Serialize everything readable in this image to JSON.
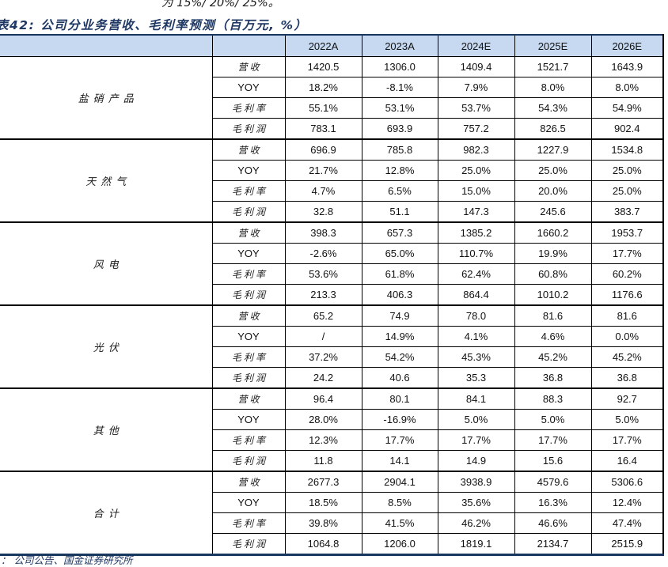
{
  "page": {
    "clipped_text_above": "为 15%/ 20%/ 25%。",
    "title": "表42: 公司分业务营收、毛利率预测（百万元, %）",
    "source_note": "： 公司公告、国金证券研究所"
  },
  "colors": {
    "header_bg": "#c6d9f1",
    "rule_navy": "#17375e",
    "title_navy": "#1f3864",
    "grid": "#000000"
  },
  "table": {
    "year_headers": [
      "2022A",
      "2023A",
      "2024E",
      "2025E",
      "2026E"
    ],
    "metric_labels": [
      "营收",
      "YOY",
      "毛利率",
      "毛利润"
    ],
    "segments": [
      {
        "name": "盐硝产品",
        "rows": [
          [
            "1420.5",
            "1306.0",
            "1409.4",
            "1521.7",
            "1643.9"
          ],
          [
            "18.2%",
            "-8.1%",
            "7.9%",
            "8.0%",
            "8.0%"
          ],
          [
            "55.1%",
            "53.1%",
            "53.7%",
            "54.3%",
            "54.9%"
          ],
          [
            "783.1",
            "693.9",
            "757.2",
            "826.5",
            "902.4"
          ]
        ]
      },
      {
        "name": "天然气",
        "rows": [
          [
            "696.9",
            "785.8",
            "982.3",
            "1227.9",
            "1534.8"
          ],
          [
            "21.7%",
            "12.8%",
            "25.0%",
            "25.0%",
            "25.0%"
          ],
          [
            "4.7%",
            "6.5%",
            "15.0%",
            "20.0%",
            "25.0%"
          ],
          [
            "32.8",
            "51.1",
            "147.3",
            "245.6",
            "383.7"
          ]
        ]
      },
      {
        "name": "风电",
        "rows": [
          [
            "398.3",
            "657.3",
            "1385.2",
            "1660.2",
            "1953.7"
          ],
          [
            "-2.6%",
            "65.0%",
            "110.7%",
            "19.9%",
            "17.7%"
          ],
          [
            "53.6%",
            "61.8%",
            "62.4%",
            "60.8%",
            "60.2%"
          ],
          [
            "213.3",
            "406.3",
            "864.4",
            "1010.2",
            "1176.6"
          ]
        ]
      },
      {
        "name": "光伏",
        "rows": [
          [
            "65.2",
            "74.9",
            "78.0",
            "81.6",
            "81.6"
          ],
          [
            "/",
            "14.9%",
            "4.1%",
            "4.6%",
            "0.0%"
          ],
          [
            "37.2%",
            "54.2%",
            "45.3%",
            "45.2%",
            "45.2%"
          ],
          [
            "24.2",
            "40.6",
            "35.3",
            "36.8",
            "36.8"
          ]
        ]
      },
      {
        "name": "其他",
        "rows": [
          [
            "96.4",
            "80.1",
            "84.1",
            "88.3",
            "92.7"
          ],
          [
            "28.0%",
            "-16.9%",
            "5.0%",
            "5.0%",
            "5.0%"
          ],
          [
            "12.3%",
            "17.7%",
            "17.7%",
            "17.7%",
            "17.7%"
          ],
          [
            "11.8",
            "14.1",
            "14.9",
            "15.6",
            "16.4"
          ]
        ]
      },
      {
        "name": "合计",
        "rows": [
          [
            "2677.3",
            "2904.1",
            "3938.9",
            "4579.6",
            "5306.6"
          ],
          [
            "18.5%",
            "8.5%",
            "35.6%",
            "16.3%",
            "12.4%"
          ],
          [
            "39.8%",
            "41.5%",
            "46.2%",
            "46.6%",
            "47.4%"
          ],
          [
            "1064.8",
            "1206.0",
            "1819.1",
            "2134.7",
            "2515.9"
          ]
        ]
      }
    ]
  }
}
